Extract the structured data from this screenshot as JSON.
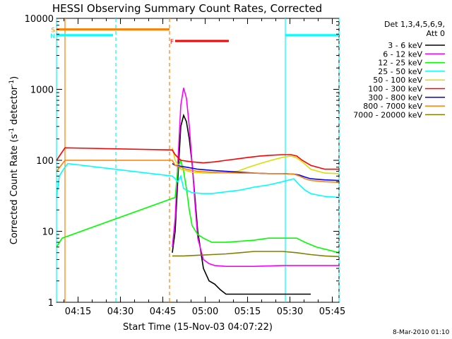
{
  "chart_data": {
    "type": "line",
    "title": "HESSI Observing Summary Count Rates, Corrected",
    "xlabel": "Start Time (15-Nov-03 04:07:22)",
    "ylabel_main": "Corrected Count Rate (s",
    "ylabel_sup1": "-1",
    "ylabel_mid": " detector",
    "ylabel_sup2": "-1",
    "ylabel_end": ")",
    "yscale": "log",
    "ylim": [
      1,
      10000
    ],
    "xlim_minutes": [
      0,
      100
    ],
    "x_ticks": [
      "04:15",
      "04:30",
      "04:45",
      "05:00",
      "05:15",
      "05:30",
      "05:45"
    ],
    "y_ticks": [
      "1",
      "10",
      "100",
      "1000",
      "10000"
    ],
    "footer_date": "8-Mar-2010 01:10",
    "legend_header": [
      "Det 1,3,4,5,6,9,",
      "Att 0"
    ],
    "series": [
      {
        "name": "3 - 6 keV",
        "color": "#000000",
        "x": [
          41,
          42,
          43,
          44,
          45,
          46,
          47,
          48,
          49,
          50,
          52,
          54,
          56,
          58,
          60,
          65,
          70,
          75,
          80,
          85,
          90
        ],
        "y": [
          5,
          10,
          60,
          300,
          430,
          350,
          200,
          90,
          30,
          10,
          3,
          2,
          1.8,
          1.5,
          1.3,
          1.3,
          1.3,
          1.3,
          1.3,
          1.3,
          1.3
        ]
      },
      {
        "name": "6 - 12 keV",
        "color": "#ff00ff",
        "x": [
          41,
          42,
          43,
          44,
          45,
          46,
          47,
          48,
          49,
          50,
          52,
          54,
          56,
          60,
          70,
          80,
          90,
          100
        ],
        "y": [
          6,
          15,
          100,
          600,
          1050,
          750,
          300,
          90,
          25,
          8,
          4,
          3.5,
          3.3,
          3.2,
          3.2,
          3.3,
          3.3,
          3.3
        ]
      },
      {
        "name": "12 - 25 keV",
        "color": "#00ff00",
        "x": [
          0,
          2,
          42,
          43,
          44,
          45,
          46,
          47,
          48,
          50,
          52,
          55,
          60,
          70,
          75,
          80,
          85,
          88,
          92,
          100
        ],
        "y": [
          6,
          8,
          30,
          80,
          100,
          70,
          40,
          20,
          12,
          9,
          8,
          7,
          7,
          7.5,
          8,
          8,
          8,
          7,
          6,
          5
        ]
      },
      {
        "name": "25 - 50 keV",
        "color": "#00ffff",
        "x": [
          0,
          1,
          2,
          3,
          4,
          41,
          42,
          43,
          44,
          45,
          48,
          52,
          55,
          60,
          65,
          70,
          75,
          80,
          84,
          86,
          88,
          90,
          95,
          100
        ],
        "y": [
          30,
          60,
          70,
          80,
          90,
          60,
          55,
          50,
          60,
          40,
          35,
          34,
          34,
          36,
          38,
          42,
          45,
          50,
          55,
          45,
          38,
          34,
          31,
          30
        ]
      },
      {
        "name": "50 - 100 keV",
        "color": "#dddd00",
        "x": [
          41,
          42,
          44,
          48,
          52,
          56,
          60,
          64,
          68,
          72,
          76,
          80,
          83,
          85,
          87,
          90,
          95,
          100
        ],
        "y": [
          150,
          100,
          75,
          68,
          66,
          66,
          67,
          70,
          80,
          90,
          100,
          110,
          115,
          108,
          95,
          75,
          66,
          65
        ]
      },
      {
        "name": "100 - 300 keV",
        "color": "#ff0000",
        "x": [
          0,
          3,
          41,
          42,
          44,
          48,
          52,
          56,
          60,
          64,
          68,
          72,
          76,
          80,
          83,
          85,
          87,
          90,
          95,
          100
        ],
        "y": [
          100,
          150,
          140,
          120,
          100,
          95,
          92,
          95,
          100,
          105,
          110,
          115,
          118,
          120,
          120,
          115,
          100,
          85,
          75,
          75
        ]
      },
      {
        "name": "300 - 800 keV",
        "color": "#0000ff",
        "x": [
          41,
          42,
          46,
          50,
          55,
          60,
          65,
          70,
          75,
          80,
          84,
          86,
          88,
          90,
          95,
          100
        ],
        "y": [
          90,
          85,
          80,
          75,
          72,
          70,
          68,
          66,
          65,
          65,
          64,
          62,
          58,
          55,
          53,
          52
        ]
      },
      {
        "name": "800 - 7000 keV",
        "color": "#ff8000",
        "x": [
          0,
          3,
          41,
          42,
          46,
          50,
          55,
          60,
          65,
          70,
          75,
          80,
          84,
          86,
          88,
          90,
          95,
          100
        ],
        "y": [
          70,
          100,
          100,
          85,
          75,
          70,
          68,
          67,
          66,
          66,
          65,
          65,
          64,
          60,
          55,
          52,
          50,
          49
        ]
      },
      {
        "name": "7000 - 20000 keV",
        "color": "#808000",
        "x": [
          41,
          45,
          50,
          55,
          60,
          65,
          70,
          75,
          80,
          85,
          90,
          95,
          100
        ],
        "y": [
          4.5,
          4.5,
          4.6,
          4.7,
          4.8,
          5,
          5.2,
          5.2,
          5.2,
          5,
          4.7,
          4.5,
          4.4
        ]
      }
    ],
    "flags": [
      {
        "label": "S",
        "color": "#ff8000",
        "y": 7000,
        "x_start": 0,
        "x_end": 40
      },
      {
        "label": "N",
        "color": "#00ffff",
        "y": 5800,
        "x_start": 0,
        "x_end": 20
      },
      {
        "label": "",
        "color": "#00ffff",
        "y": 5800,
        "x_start": 81,
        "x_end": 100
      },
      {
        "label": "F",
        "color": "#ff0000",
        "y": 4800,
        "x_start": 42,
        "x_end": 61
      }
    ],
    "vlines": [
      {
        "x": 0,
        "color": "#00ffff",
        "style": "solid"
      },
      {
        "x": 3,
        "color": "#ff8000",
        "style": "solid"
      },
      {
        "x": 21,
        "color": "#00ffff",
        "style": "dashed"
      },
      {
        "x": 40,
        "color": "#ff8000",
        "style": "dashed"
      },
      {
        "x": 81,
        "color": "#00ffff",
        "style": "solid"
      },
      {
        "x": 100,
        "color": "#00ffff",
        "style": "dashed"
      }
    ]
  }
}
